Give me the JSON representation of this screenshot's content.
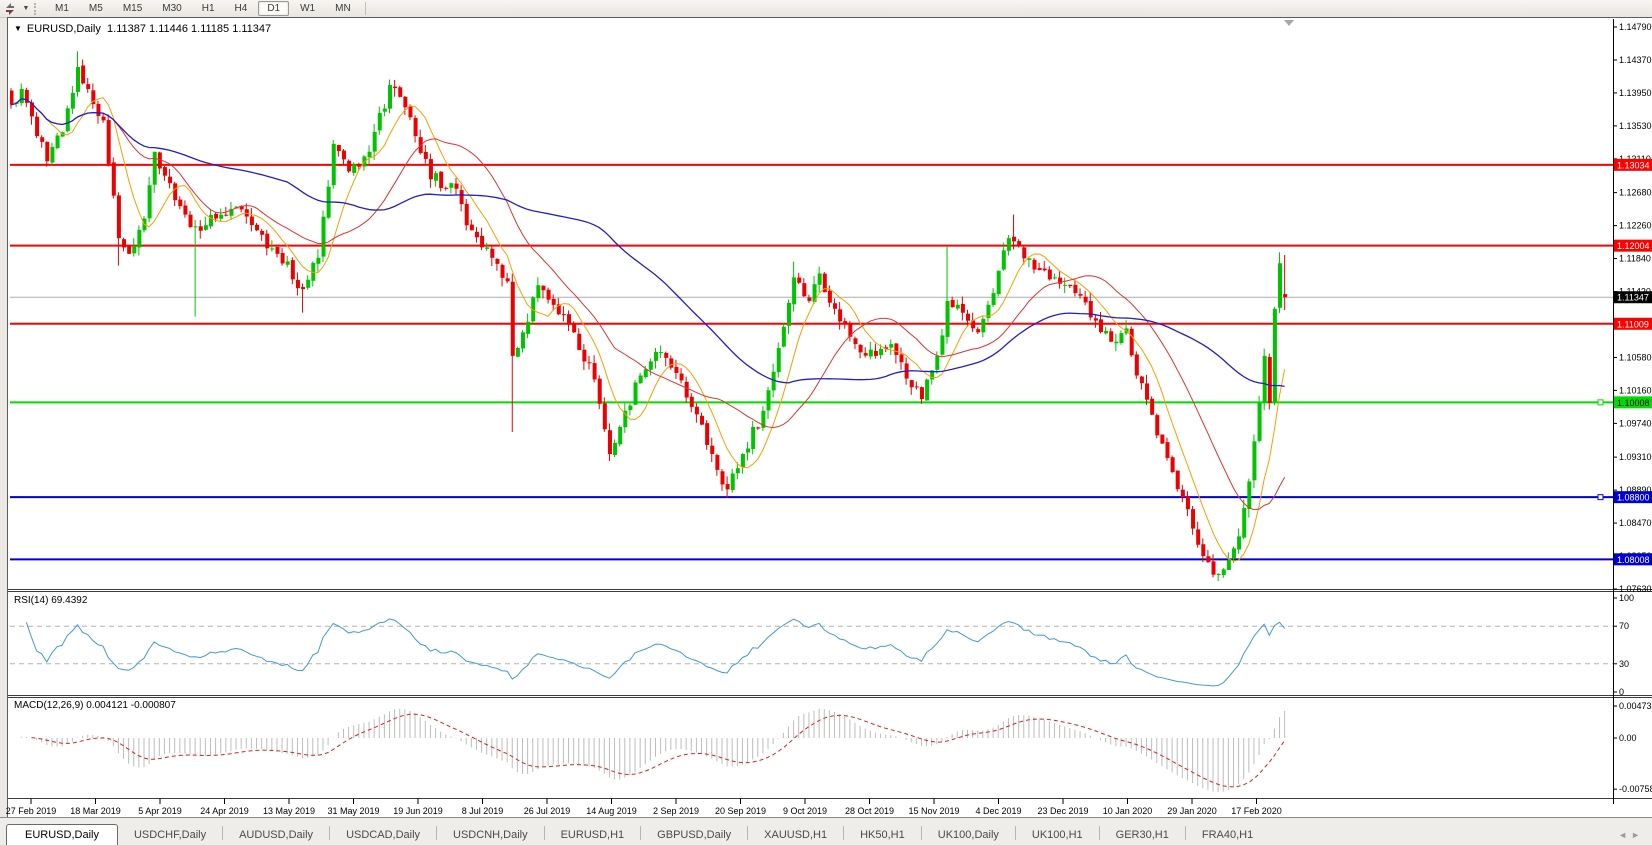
{
  "toolbar": {
    "chart_icon": "sync-diagonal-arrows-icon",
    "dropdown_caret": "▼",
    "timeframes": [
      "M1",
      "M5",
      "M15",
      "M30",
      "H1",
      "H4",
      "D1",
      "W1",
      "MN"
    ],
    "active_timeframe": "D1"
  },
  "chart": {
    "title": {
      "symbol": "EURUSD,Daily",
      "ohlc": "1.11387 1.11446 1.11185 1.11347"
    },
    "price_axis": {
      "ticks": [
        1.1479,
        1.1437,
        1.1395,
        1.1353,
        1.1311,
        1.1268,
        1.1226,
        1.1184,
        1.1142,
        1.11,
        1.1058,
        1.1016,
        1.0974,
        1.0931,
        1.0889,
        1.0847,
        1.0805,
        1.0763
      ]
    },
    "hlines": [
      {
        "price": 1.13034,
        "label": "1.13034",
        "color": "#FF0000",
        "text": "#FFFFFF"
      },
      {
        "price": 1.12004,
        "label": "1.12004",
        "color": "#FF0000",
        "text": "#FFFFFF"
      },
      {
        "price": 1.11009,
        "label": "1.11009",
        "color": "#FF0000",
        "text": "#FFFFFF"
      },
      {
        "price": 1.10008,
        "label": "1.10008",
        "color": "#00DC00",
        "text": "#000000",
        "handle": true
      },
      {
        "price": 1.088,
        "label": "1.08800",
        "color": "#0000D6",
        "text": "#FFFFFF",
        "handle": true
      },
      {
        "price": 1.08008,
        "label": "1.08008",
        "color": "#0000D6",
        "text": "#FFFFFF"
      }
    ],
    "current_price": {
      "price": 1.11347,
      "label": "1.11347",
      "line_color": "#ADADAD",
      "label_bg": "#000000",
      "text": "#FFFFFF"
    },
    "candles": {
      "bars": 250,
      "up_color": "#00C400",
      "down_color": "#EE0000",
      "anchors": [
        [
          0,
          1.138
        ],
        [
          2,
          1.14
        ],
        [
          5,
          1.134
        ],
        [
          7,
          1.1308
        ],
        [
          10,
          1.1345
        ],
        [
          13,
          1.1428
        ],
        [
          15,
          1.14
        ],
        [
          18,
          1.136
        ],
        [
          21,
          1.121
        ],
        [
          23,
          1.119
        ],
        [
          26,
          1.1235
        ],
        [
          28,
          1.132
        ],
        [
          31,
          1.128
        ],
        [
          34,
          1.124
        ],
        [
          36,
          1.1225
        ],
        [
          40,
          1.1235
        ],
        [
          44,
          1.125
        ],
        [
          48,
          1.122
        ],
        [
          52,
          1.119
        ],
        [
          57,
          1.1145
        ],
        [
          60,
          1.1185
        ],
        [
          63,
          1.133
        ],
        [
          66,
          1.1295
        ],
        [
          70,
          1.132
        ],
        [
          74,
          1.1405
        ],
        [
          76,
          1.139
        ],
        [
          79,
          1.134
        ],
        [
          82,
          1.1285
        ],
        [
          86,
          1.128
        ],
        [
          90,
          1.122
        ],
        [
          94,
          1.1185
        ],
        [
          97,
          1.1155
        ],
        [
          98,
          1.106
        ],
        [
          100,
          1.109
        ],
        [
          103,
          1.115
        ],
        [
          106,
          1.1125
        ],
        [
          110,
          1.109
        ],
        [
          114,
          1.103
        ],
        [
          117,
          1.0935
        ],
        [
          120,
          1.099
        ],
        [
          123,
          1.1035
        ],
        [
          126,
          1.1065
        ],
        [
          129,
          1.1045
        ],
        [
          133,
          1.0995
        ],
        [
          137,
          1.0935
        ],
        [
          140,
          1.089
        ],
        [
          143,
          1.0935
        ],
        [
          147,
          1.099
        ],
        [
          150,
          1.107
        ],
        [
          153,
          1.116
        ],
        [
          156,
          1.113
        ],
        [
          158,
          1.1165
        ],
        [
          161,
          1.112
        ],
        [
          165,
          1.1075
        ],
        [
          169,
          1.106
        ],
        [
          172,
          1.1075
        ],
        [
          176,
          1.102
        ],
        [
          178,
          1.1005
        ],
        [
          181,
          1.106
        ],
        [
          183,
          1.113
        ],
        [
          186,
          1.1115
        ],
        [
          189,
          1.109
        ],
        [
          192,
          1.114
        ],
        [
          195,
          1.121
        ],
        [
          197,
          1.12
        ],
        [
          200,
          1.117
        ],
        [
          204,
          1.116
        ],
        [
          208,
          1.114
        ],
        [
          212,
          1.1105
        ],
        [
          215,
          1.1078
        ],
        [
          218,
          1.1095
        ],
        [
          220,
          1.1035
        ],
        [
          223,
          1.0985
        ],
        [
          226,
          1.093
        ],
        [
          229,
          1.088
        ],
        [
          231,
          1.084
        ],
        [
          233,
          1.0805
        ],
        [
          236,
          1.0782
        ],
        [
          238,
          1.08
        ],
        [
          240,
          1.083
        ],
        [
          242,
          1.09
        ],
        [
          244,
          1.1
        ],
        [
          245,
          1.106
        ],
        [
          246,
          1.1
        ],
        [
          247,
          1.112
        ],
        [
          248,
          1.1178
        ],
        [
          249,
          1.11347
        ]
      ],
      "wicks": [
        [
          13,
          "high",
          1.1448
        ],
        [
          21,
          "low",
          1.1175
        ],
        [
          36,
          "low",
          1.111
        ],
        [
          57,
          "low",
          1.1115
        ],
        [
          74,
          "high",
          1.1412
        ],
        [
          98,
          "low",
          1.0963
        ],
        [
          117,
          "low",
          1.0926
        ],
        [
          140,
          "low",
          1.0879
        ],
        [
          153,
          "high",
          1.118
        ],
        [
          183,
          "high",
          1.12
        ],
        [
          196,
          "high",
          1.124
        ],
        [
          236,
          "low",
          1.0773
        ],
        [
          248,
          "high",
          1.1192
        ],
        [
          249,
          "high",
          1.11446
        ],
        [
          249,
          "low",
          1.11185
        ]
      ],
      "last_open": 1.11387
    },
    "moving_averages": [
      {
        "period": 8,
        "color": "#FF9C00",
        "width": 1
      },
      {
        "period": 21,
        "color": "#E03232",
        "width": 1
      },
      {
        "period": 55,
        "color": "#2020C8",
        "width": 1.3
      }
    ],
    "shift_marker": "chart-shift-triangle-icon"
  },
  "rsi": {
    "label": "RSI(14) 69.4392",
    "scale": [
      "100",
      "70",
      "30",
      "0"
    ],
    "levels": [
      70,
      30
    ],
    "line_color": "#4198DF",
    "level_color": "#B4B4B4"
  },
  "macd": {
    "label": "MACD(12,26,9) 0.004121 -0.000807",
    "scale": [
      "0.004738",
      "0.00",
      "-0.00758"
    ],
    "histogram_color": "#BDBDBD",
    "signal_color": "#DE2020"
  },
  "date_axis": {
    "labels": [
      "27 Feb 2019",
      "18 Mar 2019",
      "5 Apr 2019",
      "24 Apr 2019",
      "13 May 2019",
      "31 May 2019",
      "19 Jun 2019",
      "8 Jul 2019",
      "26 Jul 2019",
      "14 Aug 2019",
      "2 Sep 2019",
      "20 Sep 2019",
      "9 Oct 2019",
      "28 Oct 2019",
      "15 Nov 2019",
      "4 Dec 2019",
      "23 Dec 2019",
      "10 Jan 2020",
      "29 Jan 2020",
      "17 Feb 2020"
    ]
  },
  "tabs": {
    "items": [
      "EURUSD,Daily",
      "USDCHF,Daily",
      "AUDUSD,Daily",
      "USDCAD,Daily",
      "USDCNH,Daily",
      "EURUSD,H1",
      "GBPUSD,Daily",
      "XAUUSD,H1",
      "HK50,H1",
      "UK100,Daily",
      "UK100,H1",
      "GER30,H1",
      "FRA40,H1"
    ],
    "active": "EURUSD,Daily",
    "scroll_left": "◄",
    "scroll_right": "►"
  }
}
